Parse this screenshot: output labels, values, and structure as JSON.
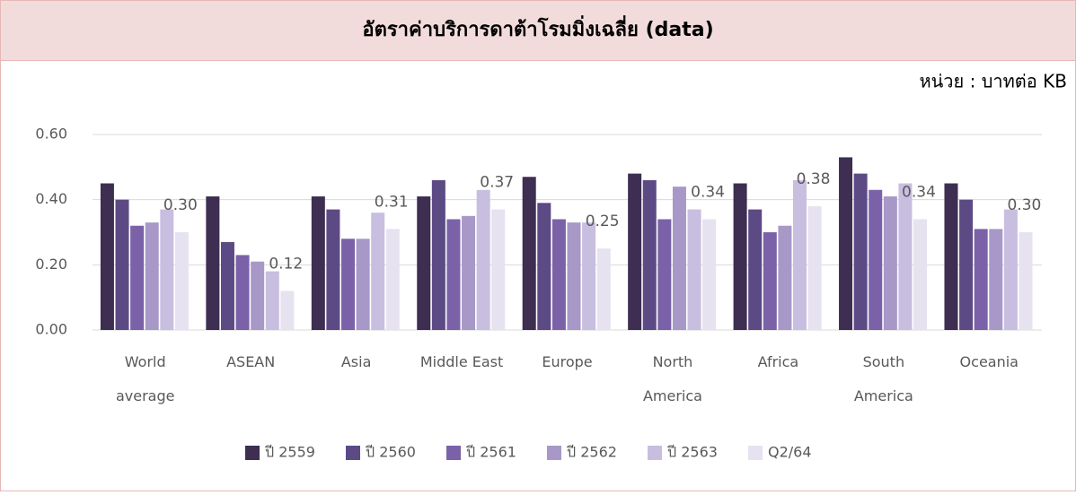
{
  "chart_data": {
    "type": "bar",
    "title": "อัตราค่าบริการดาต้าโรมมิ่งเฉลี่ย (data)",
    "subtitle": "หน่วย : บาทต่อ KB",
    "categories": [
      "World average",
      "ASEAN",
      "Asia",
      "Middle East",
      "Europe",
      "North America",
      "Africa",
      "South America",
      "Oceania"
    ],
    "series": [
      {
        "name": "ปี 2559",
        "color": "#3d2e52",
        "values": [
          0.45,
          0.41,
          0.41,
          0.41,
          0.47,
          0.48,
          0.45,
          0.53,
          0.45
        ]
      },
      {
        "name": "ปี 2560",
        "color": "#5c4a85",
        "values": [
          0.4,
          0.27,
          0.37,
          0.46,
          0.39,
          0.46,
          0.37,
          0.48,
          0.4
        ]
      },
      {
        "name": "ปี 2561",
        "color": "#7b62a8",
        "values": [
          0.32,
          0.23,
          0.28,
          0.34,
          0.34,
          0.34,
          0.3,
          0.43,
          0.31
        ]
      },
      {
        "name": "ปี 2562",
        "color": "#a898c8",
        "values": [
          0.33,
          0.21,
          0.28,
          0.35,
          0.33,
          0.44,
          0.32,
          0.41,
          0.31
        ]
      },
      {
        "name": "ปี 2563",
        "color": "#c8bedf",
        "values": [
          0.37,
          0.18,
          0.36,
          0.43,
          0.33,
          0.37,
          0.46,
          0.45,
          0.37
        ]
      },
      {
        "name": "Q2/64",
        "color": "#e6e2f0",
        "values": [
          0.3,
          0.12,
          0.31,
          0.37,
          0.25,
          0.34,
          0.38,
          0.34,
          0.3
        ],
        "value_labels": [
          "0.30",
          "0.12",
          "0.31",
          "0.37",
          "0.25",
          "0.34",
          "0.38",
          "0.34",
          "0.30"
        ]
      }
    ],
    "ylim": [
      0,
      0.6
    ],
    "yticks": [
      {
        "value": 0,
        "label": "0.00"
      },
      {
        "value": 0.2,
        "label": "0.20"
      },
      {
        "value": 0.4,
        "label": "0.40"
      },
      {
        "value": 0.6,
        "label": "0.60"
      }
    ],
    "grid": true,
    "legend": "bottom"
  }
}
